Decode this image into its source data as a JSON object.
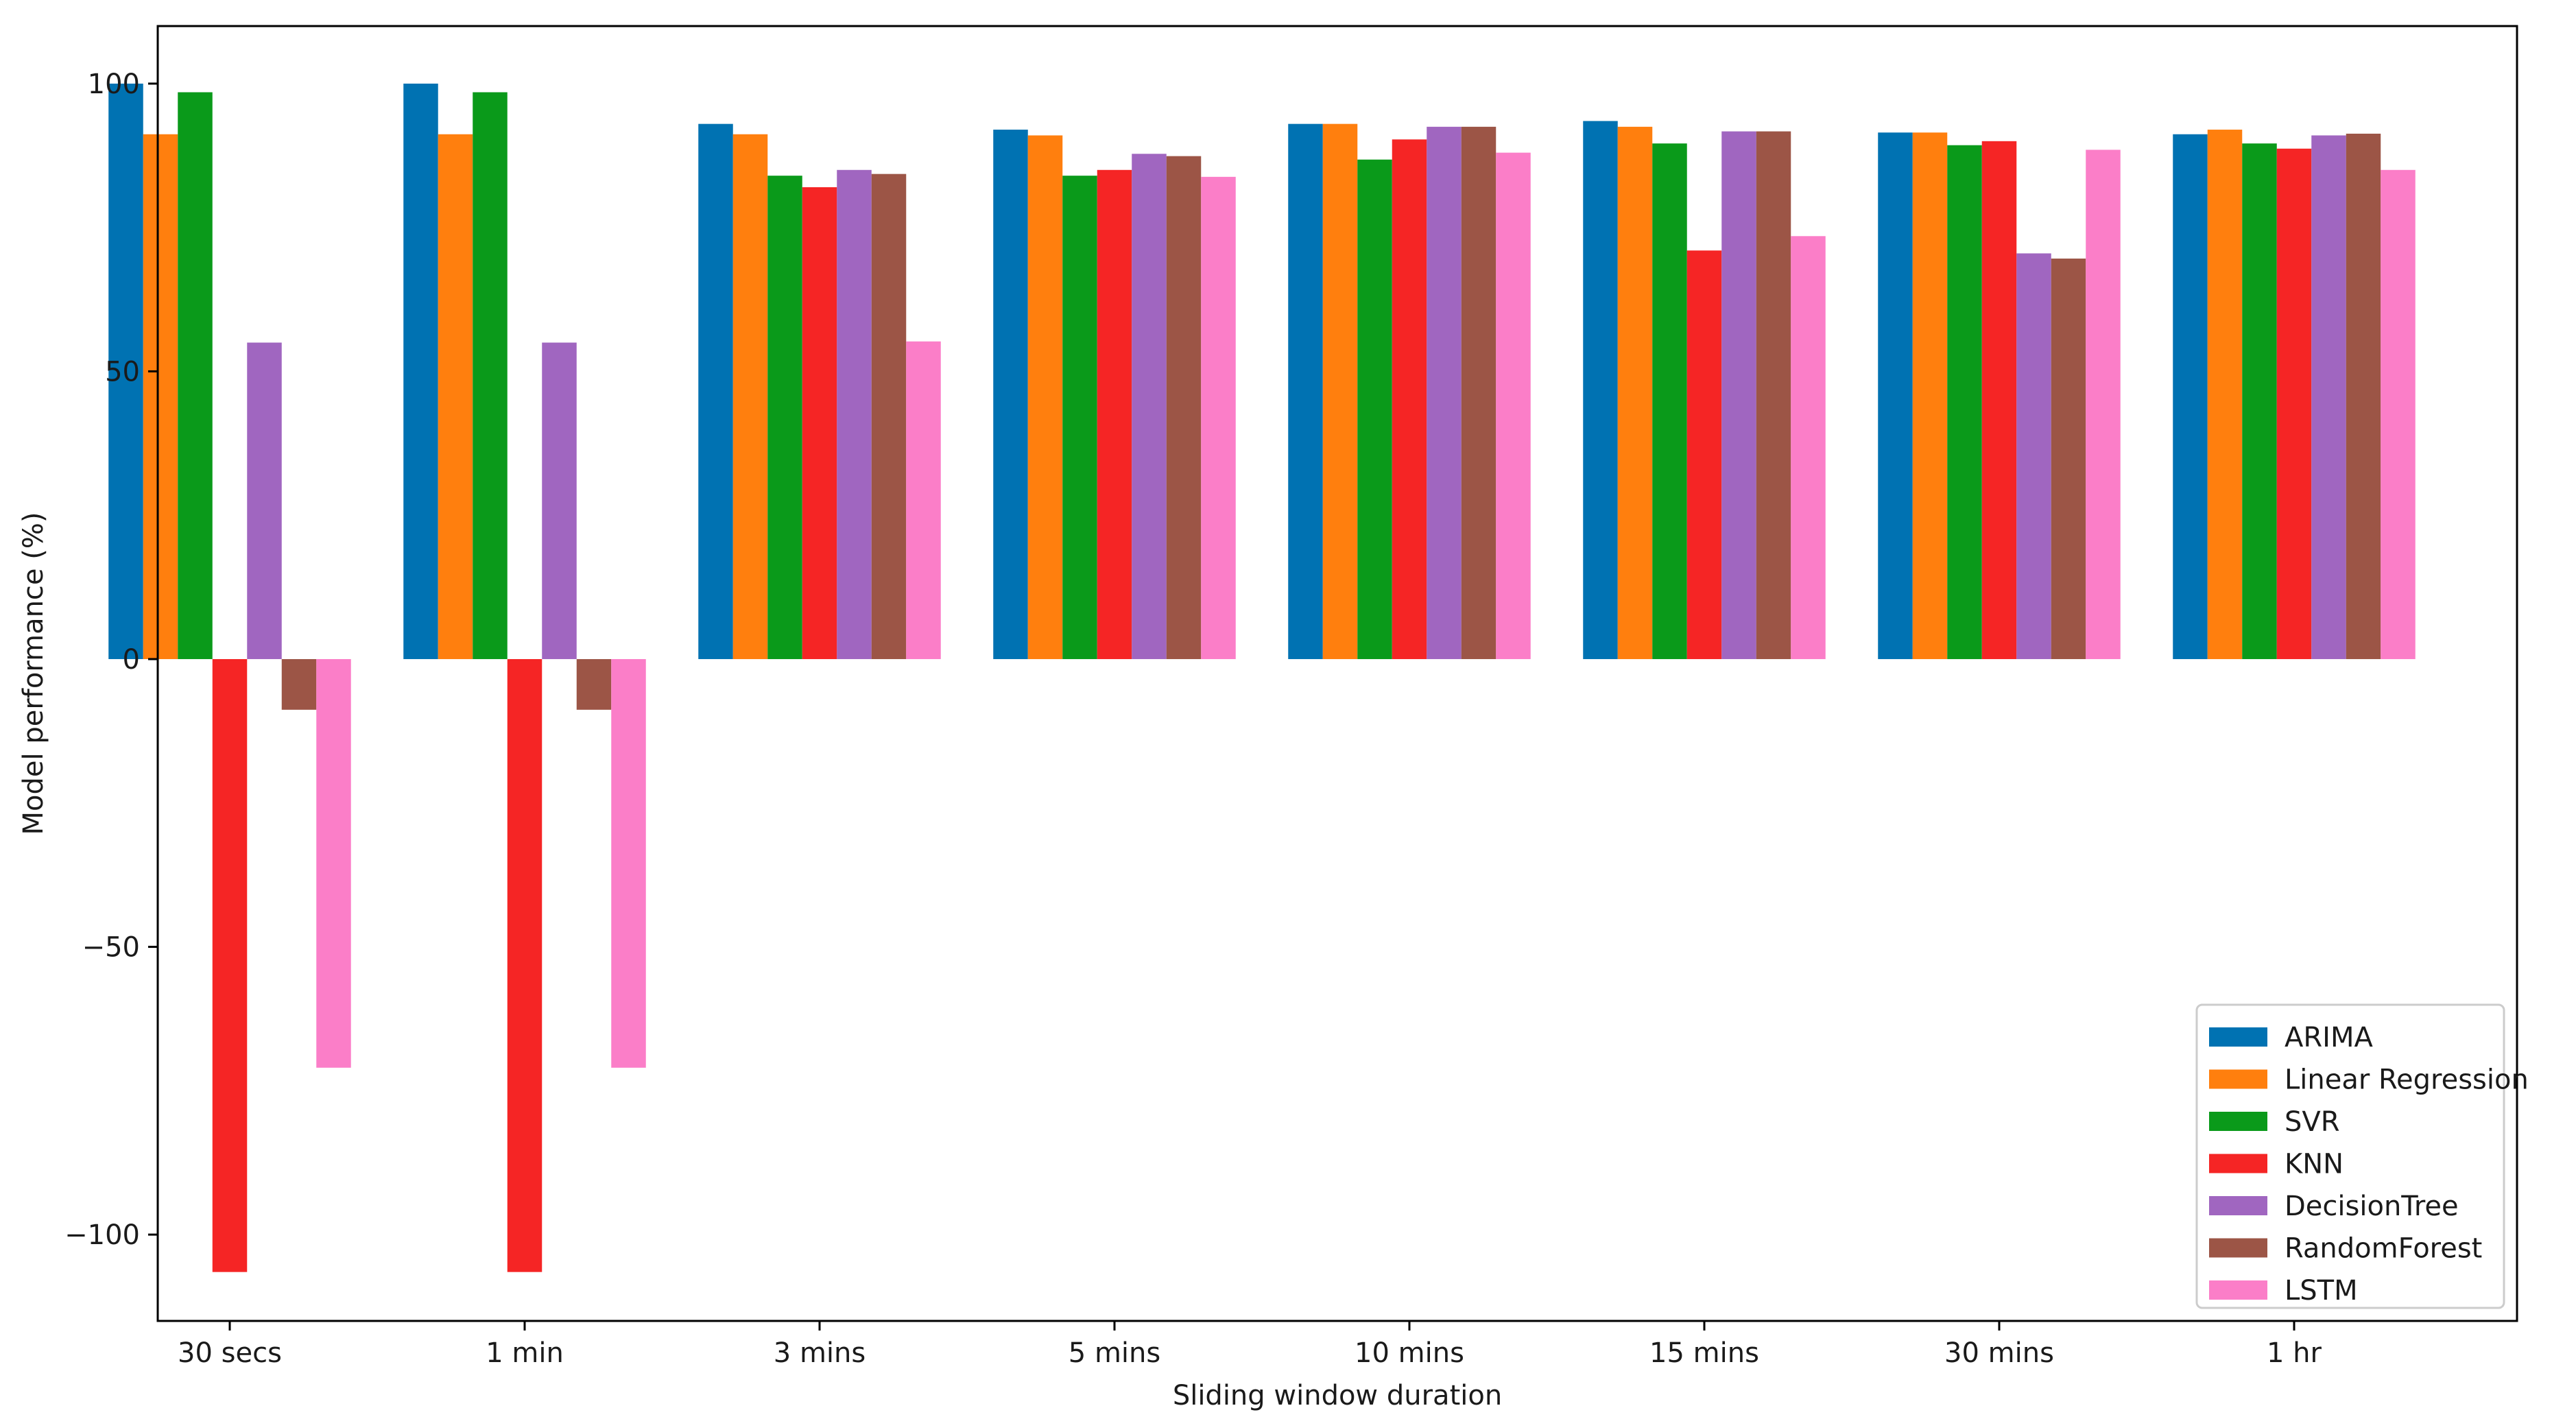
{
  "chart_data": {
    "type": "bar",
    "title": "",
    "xlabel": "Sliding window duration",
    "ylabel": "Model performance (%)",
    "ylim": [
      -115,
      110
    ],
    "yticks": [
      100,
      50,
      0,
      -50,
      -100
    ],
    "ytick_labels": [
      "100",
      "50",
      "0",
      "−50",
      "−100"
    ],
    "grid": false,
    "legend_position": "lower-right",
    "categories": [
      "30 secs",
      "1 min",
      "3 mins",
      "5 mins",
      "10 mins",
      "15 mins",
      "30 mins",
      "1 hr"
    ],
    "series": [
      {
        "name": "ARIMA",
        "color": "#0072b2",
        "values": [
          100,
          100,
          93,
          92,
          93,
          93.5,
          91.5,
          91.2
        ]
      },
      {
        "name": "Linear Regression",
        "color": "#ff7f0e",
        "values": [
          91.2,
          91.2,
          91.2,
          91,
          93,
          92.5,
          91.5,
          92
        ]
      },
      {
        "name": "SVR",
        "color": "#0a9a1a",
        "values": [
          98.5,
          98.5,
          84,
          84,
          86.8,
          89.6,
          89.3,
          89.6
        ]
      },
      {
        "name": "KNN",
        "color": "#f52525",
        "values": [
          -106.5,
          -106.5,
          82,
          85,
          90.3,
          71,
          90,
          88.7
        ]
      },
      {
        "name": "DecisionTree",
        "color": "#a066c0",
        "values": [
          55,
          55,
          85,
          87.8,
          92.5,
          91.7,
          70.5,
          91
        ]
      },
      {
        "name": "RandomForest",
        "color": "#9c5546",
        "values": [
          -8.8,
          -8.8,
          84.3,
          87.4,
          92.5,
          91.7,
          69.6,
          91.3
        ]
      },
      {
        "name": "LSTM",
        "color": "#fb7ec8",
        "values": [
          -71,
          -71,
          55.2,
          83.8,
          88,
          73.5,
          88.5,
          85
        ]
      }
    ]
  }
}
